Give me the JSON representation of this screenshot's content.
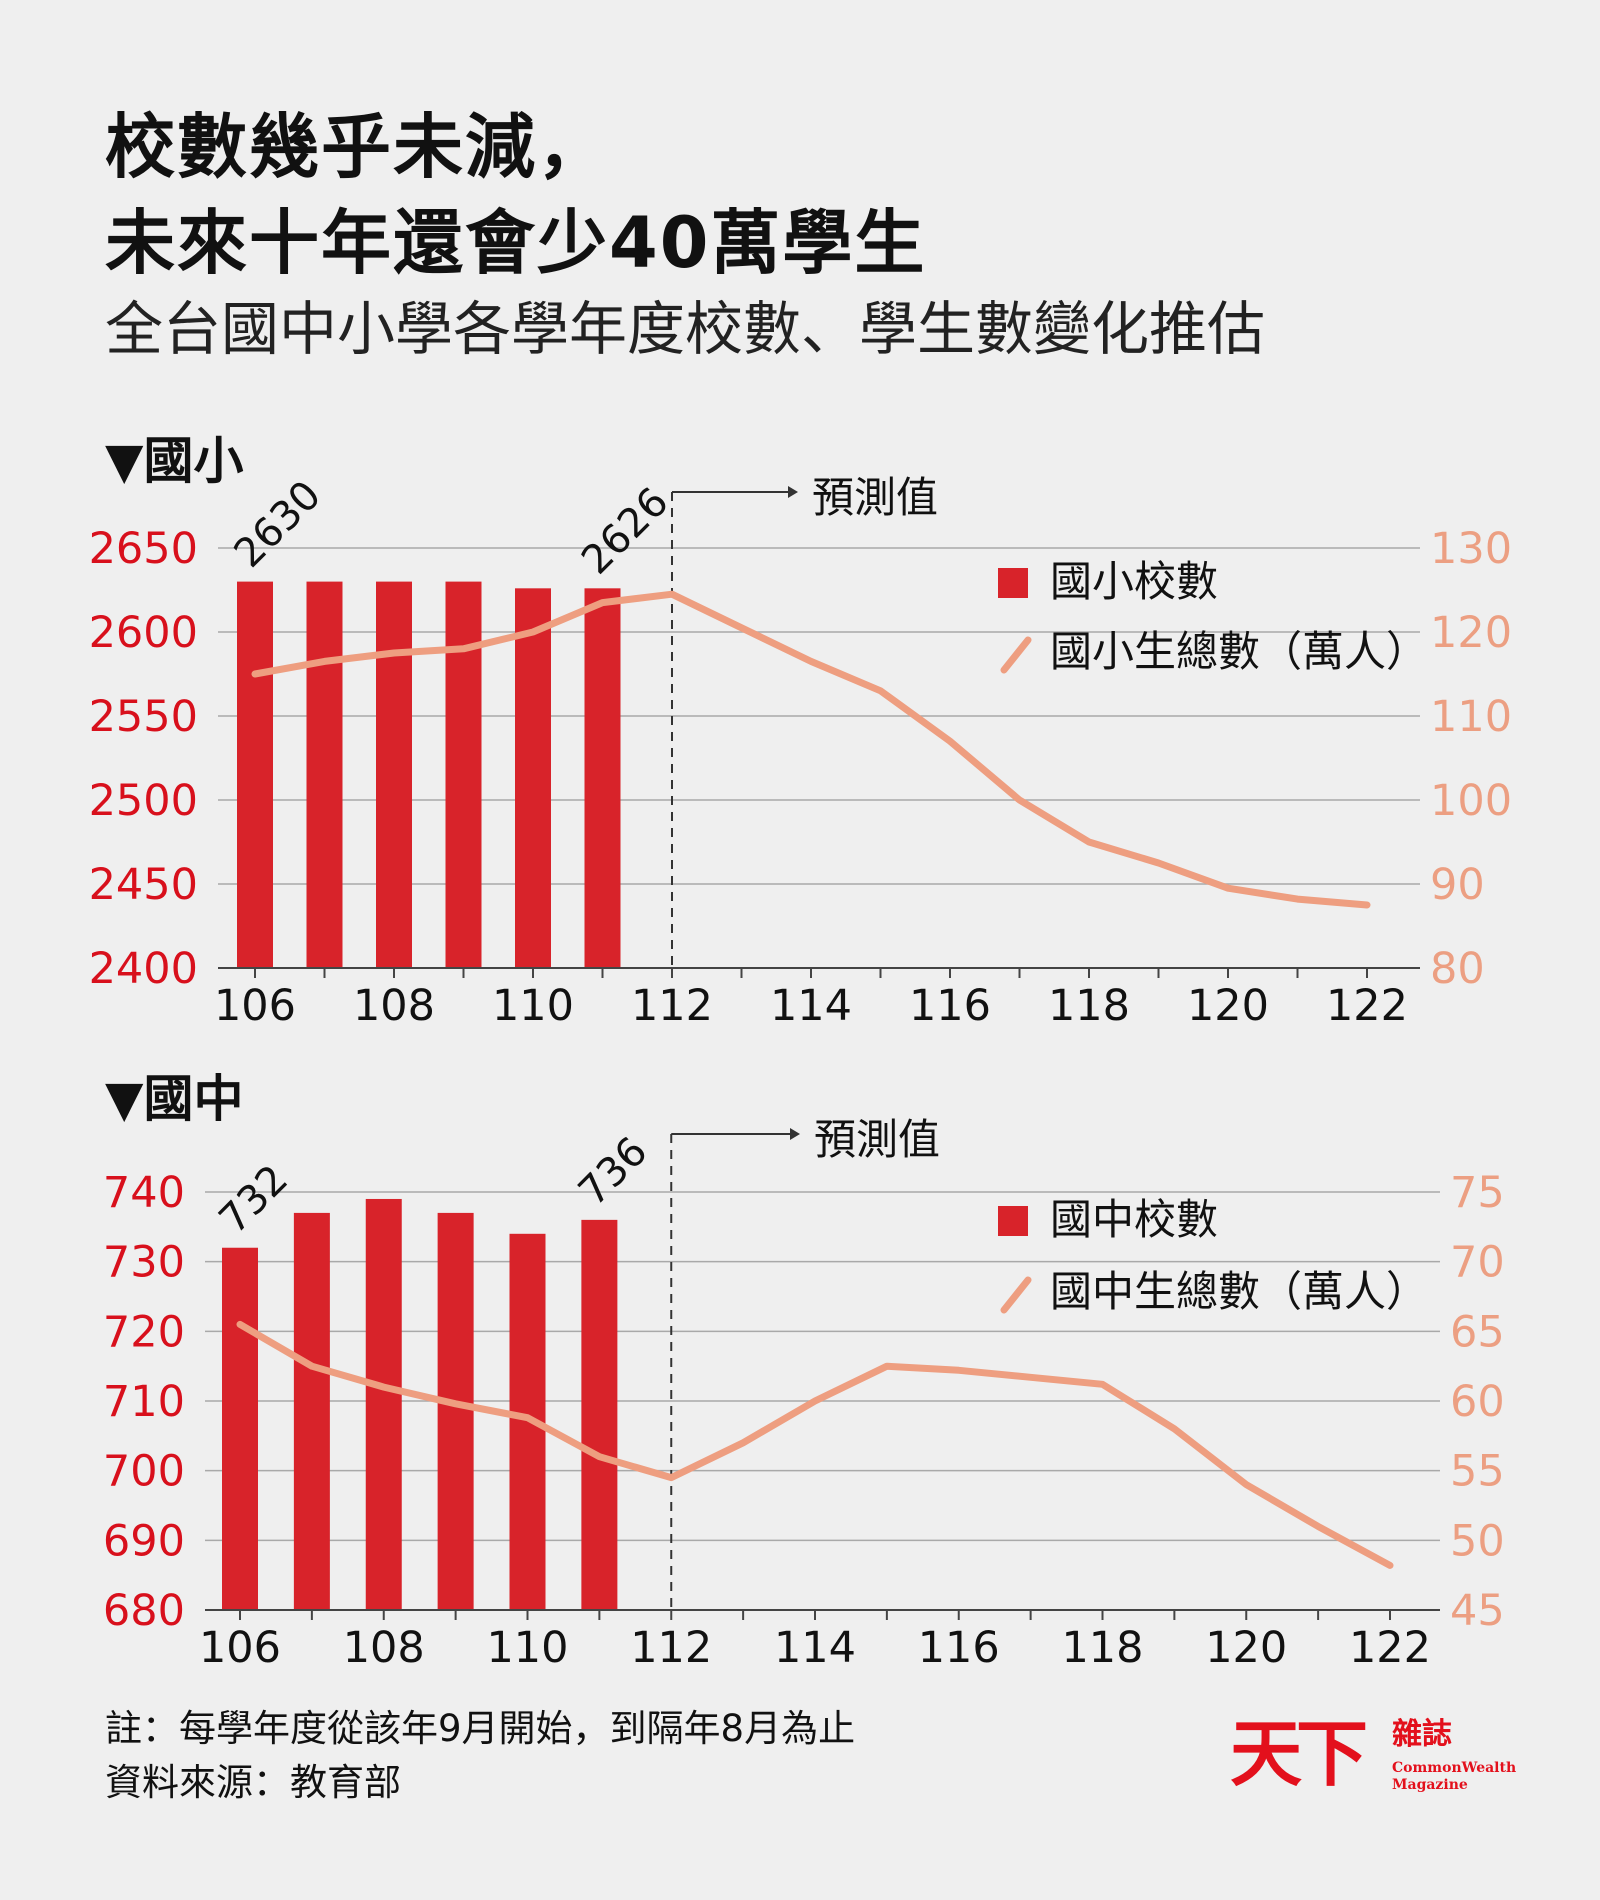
{
  "title_line1": "校數幾乎未減，",
  "title_line2": "未來十年還會少40萬學生",
  "subtitle": "全台國中小學各學年度校數、學生數變化推估",
  "note": "註：每學年度從該年9月開始，到隔年8月為止",
  "source": "資料來源：教育部",
  "logo": {
    "mark": "天下",
    "name": "雜誌",
    "english": "CommonWealth Magazine"
  },
  "colors": {
    "bars": "#d8232a",
    "line": "#ee9e80",
    "left_axis": "#d8101c",
    "right_axis": "#ec9f82",
    "grid": "#a9a9a9"
  },
  "chart_data": [
    {
      "type": "bar+line",
      "panel_label": "▼國小",
      "forecast_label": "預測值",
      "forecast_from": 112,
      "x_ticks": [
        106,
        108,
        110,
        112,
        114,
        116,
        118,
        120,
        122
      ],
      "xlim": [
        106,
        122
      ],
      "bar_series": {
        "name": "國小校數",
        "x": [
          106,
          107,
          108,
          109,
          110,
          111
        ],
        "values": [
          2630,
          2630,
          2630,
          2630,
          2626,
          2626
        ],
        "labels": [
          "2630",
          "",
          "",
          "",
          "",
          "2626"
        ]
      },
      "line_series": {
        "name": "國小生總數（萬人）",
        "x": [
          106,
          107,
          108,
          109,
          110,
          111,
          112,
          113,
          114,
          115,
          116,
          117,
          118,
          119,
          120,
          121,
          122
        ],
        "values": [
          115,
          116.5,
          117.5,
          118,
          120,
          123.5,
          124.5,
          120.5,
          116.5,
          113,
          107,
          100,
          95,
          92.5,
          89.5,
          88.2,
          87.5
        ]
      },
      "left_axis": {
        "ylim": [
          2400,
          2650
        ],
        "ticks": [
          2400,
          2450,
          2500,
          2550,
          2600,
          2650
        ]
      },
      "right_axis": {
        "ylim": [
          80,
          130
        ],
        "ticks": [
          80,
          90,
          100,
          110,
          120,
          130
        ]
      }
    },
    {
      "type": "bar+line",
      "panel_label": "▼國中",
      "forecast_label": "預測值",
      "forecast_from": 112,
      "x_ticks": [
        106,
        108,
        110,
        112,
        114,
        116,
        118,
        120,
        122
      ],
      "xlim": [
        106,
        122
      ],
      "bar_series": {
        "name": "國中校數",
        "x": [
          106,
          107,
          108,
          109,
          110,
          111
        ],
        "values": [
          732,
          737,
          739,
          737,
          734,
          736
        ],
        "labels": [
          "732",
          "",
          "",
          "",
          "",
          "736"
        ]
      },
      "line_series": {
        "name": "國中生總數（萬人）",
        "x": [
          106,
          107,
          108,
          109,
          110,
          111,
          112,
          113,
          114,
          115,
          116,
          117,
          118,
          119,
          120,
          121,
          122
        ],
        "values": [
          65.5,
          62.5,
          61,
          59.8,
          58.8,
          56,
          54.5,
          57,
          60,
          62.5,
          62.2,
          61.7,
          61.2,
          58,
          54,
          51,
          48.2
        ]
      },
      "left_axis": {
        "ylim": [
          680,
          740
        ],
        "ticks": [
          680,
          690,
          700,
          710,
          720,
          730,
          740
        ]
      },
      "right_axis": {
        "ylim": [
          45,
          75
        ],
        "ticks": [
          45,
          50,
          55,
          60,
          65,
          70,
          75
        ]
      }
    }
  ]
}
